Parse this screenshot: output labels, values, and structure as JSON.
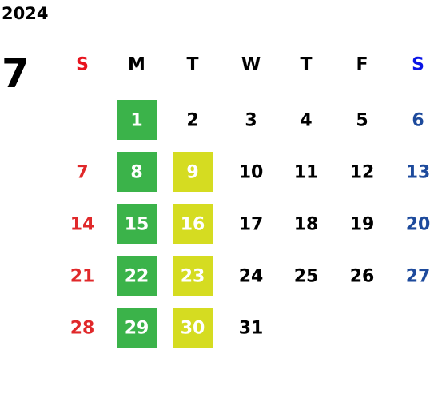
{
  "year": "2024",
  "month": "7",
  "weekdays": [
    {
      "label": "S",
      "color": "#e8141e",
      "day_color": "#e0282a"
    },
    {
      "label": "M",
      "color": "#000000",
      "day_color": "#000000"
    },
    {
      "label": "T",
      "color": "#000000",
      "day_color": "#000000"
    },
    {
      "label": "W",
      "color": "#000000",
      "day_color": "#000000"
    },
    {
      "label": "T",
      "color": "#000000",
      "day_color": "#000000"
    },
    {
      "label": "F",
      "color": "#000000",
      "day_color": "#000000"
    },
    {
      "label": "S",
      "color": "#0a14e6",
      "day_color": "#1d4a9c"
    }
  ],
  "weeks": [
    [
      null,
      {
        "day": "1",
        "bg": "#3bb34a"
      },
      {
        "day": "2"
      },
      {
        "day": "3"
      },
      {
        "day": "4"
      },
      {
        "day": "5"
      },
      {
        "day": "6"
      }
    ],
    [
      {
        "day": "7"
      },
      {
        "day": "8",
        "bg": "#3bb34a"
      },
      {
        "day": "9",
        "bg": "#d5dc21"
      },
      {
        "day": "10"
      },
      {
        "day": "11"
      },
      {
        "day": "12"
      },
      {
        "day": "13"
      }
    ],
    [
      {
        "day": "14"
      },
      {
        "day": "15",
        "bg": "#3bb34a"
      },
      {
        "day": "16",
        "bg": "#d5dc21"
      },
      {
        "day": "17"
      },
      {
        "day": "18"
      },
      {
        "day": "19"
      },
      {
        "day": "20"
      }
    ],
    [
      {
        "day": "21"
      },
      {
        "day": "22",
        "bg": "#3bb34a"
      },
      {
        "day": "23",
        "bg": "#d5dc21"
      },
      {
        "day": "24"
      },
      {
        "day": "25"
      },
      {
        "day": "26"
      },
      {
        "day": "27"
      }
    ],
    [
      {
        "day": "28"
      },
      {
        "day": "29",
        "bg": "#3bb34a"
      },
      {
        "day": "30",
        "bg": "#d5dc21"
      },
      {
        "day": "31"
      },
      null,
      null,
      null
    ]
  ]
}
